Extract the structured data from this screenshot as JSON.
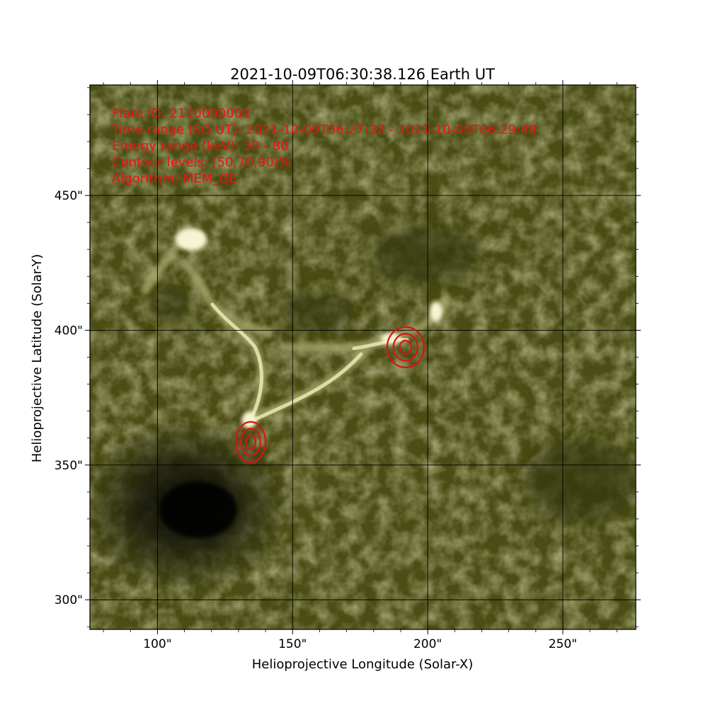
{
  "title": "2021-10-09T06:30:38.126   Earth UT",
  "xlabel": "Helioprojective Longitude (Solar-X)",
  "ylabel": "Helioprojective Latitude (Solar-Y)",
  "info": [
    "Flare ID: 2110090002",
    "Time range (SO UT): 2021-10-09T06:27:32 - 2021-10-09T06:29:49",
    "Energy range (keV): 30 - 80",
    "Contour levels: [50,70,90]%",
    "Algorithm: MEM_GE"
  ],
  "colors": {
    "contour": "#dd1111",
    "info_text": "#ee1111",
    "background": "#4a4d14",
    "bright": "#ecebbf"
  },
  "chart_data": {
    "type": "image",
    "units": "arcsec",
    "xlim": [
      75,
      277
    ],
    "ylim": [
      289,
      491
    ],
    "grid": true,
    "x_ticks": [
      {
        "value": 100,
        "label": "100\""
      },
      {
        "value": 150,
        "label": "150\""
      },
      {
        "value": 200,
        "label": "200\""
      },
      {
        "value": 250,
        "label": "250\""
      }
    ],
    "y_ticks": [
      {
        "value": 300,
        "label": "300\""
      },
      {
        "value": 350,
        "label": "350\""
      },
      {
        "value": 400,
        "label": "400\""
      },
      {
        "value": 450,
        "label": "450\""
      }
    ],
    "x_minor_step": 10,
    "y_minor_step": 10,
    "contour_sources": [
      {
        "x": 134.5,
        "y": 358.5,
        "radii": [
          [
            5.5,
            7.5
          ],
          [
            3.6,
            5.0
          ],
          [
            1.8,
            2.5
          ]
        ]
      },
      {
        "x": 191.8,
        "y": 393.7,
        "radii": [
          [
            6.8,
            7.5
          ],
          [
            4.5,
            5.0
          ],
          [
            2.2,
            2.5
          ]
        ]
      }
    ]
  }
}
